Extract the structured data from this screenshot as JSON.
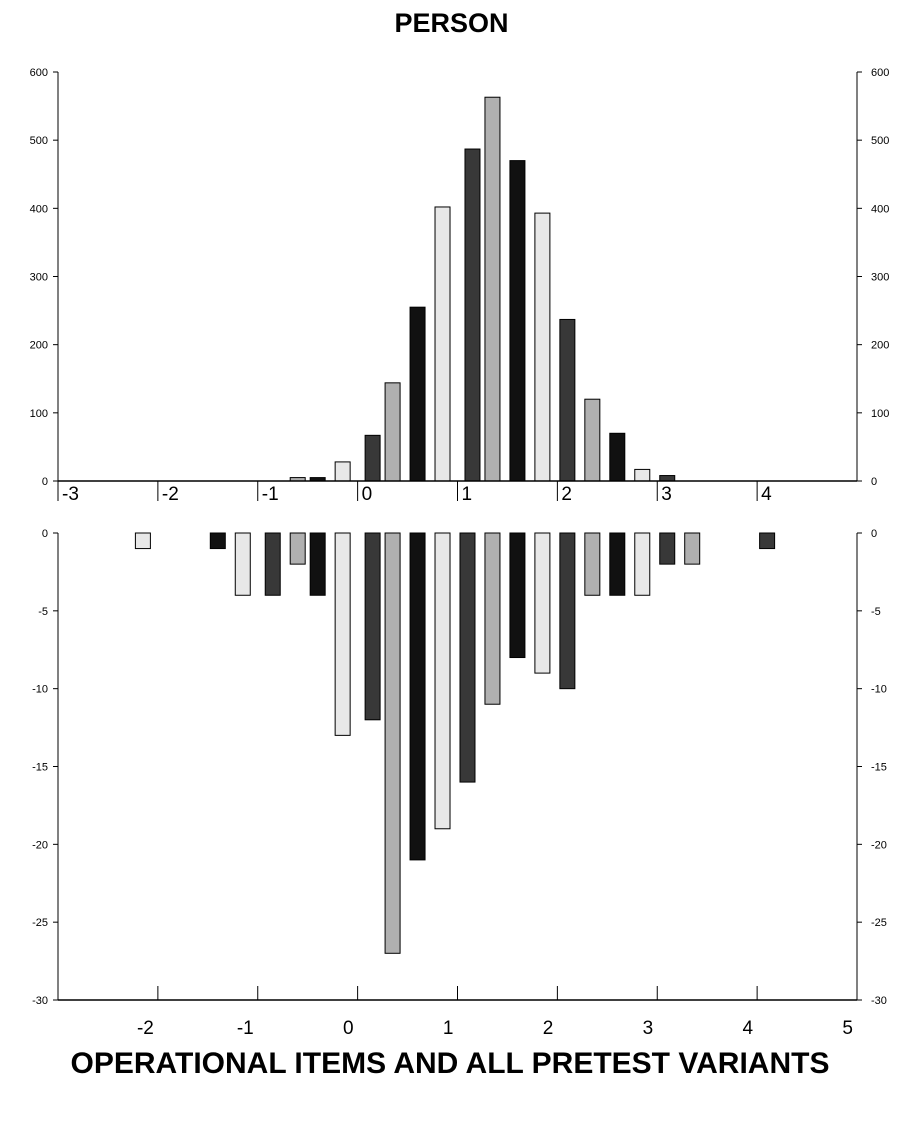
{
  "chart_data": [
    {
      "type": "bar",
      "title": "PERSON",
      "ylim": [
        0,
        600
      ],
      "xlim": [
        -3,
        5
      ],
      "yticks": [
        0,
        100,
        200,
        300,
        400,
        500,
        600
      ],
      "xticks": [
        -3,
        -2,
        -1,
        0,
        1,
        2,
        3,
        4
      ],
      "x": [
        -0.6,
        -0.4,
        -0.15,
        0.15,
        0.35,
        0.6,
        0.85,
        1.15,
        1.35,
        1.6,
        1.85,
        2.1,
        2.35,
        2.6,
        2.85,
        3.1
      ],
      "values": [
        5,
        5,
        28,
        67,
        144,
        255,
        402,
        487,
        563,
        470,
        393,
        237,
        120,
        70,
        17,
        8
      ],
      "colors": [
        "#b0b0b0",
        "#111111",
        "#e8e8e8",
        "#383838",
        "#b0b0b0",
        "#111111",
        "#e8e8e8",
        "#383838",
        "#b0b0b0",
        "#111111",
        "#e8e8e8",
        "#383838",
        "#b0b0b0",
        "#111111",
        "#e8e8e8",
        "#383838"
      ],
      "grid": false
    },
    {
      "type": "bar",
      "xlabel": "OPERATIONAL ITEMS AND ALL PRETEST VARIANTS",
      "ylim": [
        -30,
        0
      ],
      "xlim": [
        -3,
        5
      ],
      "yticks": [
        0,
        -5,
        -10,
        -15,
        -20,
        -25,
        -30
      ],
      "xticks": [
        -2,
        -1,
        0,
        1,
        2,
        3,
        4,
        5
      ],
      "x": [
        -2.15,
        -1.4,
        -1.15,
        -0.85,
        -0.6,
        -0.4,
        -0.15,
        0.15,
        0.35,
        0.6,
        0.85,
        1.1,
        1.35,
        1.6,
        1.85,
        2.1,
        2.35,
        2.6,
        2.85,
        3.1,
        3.35,
        4.1
      ],
      "values": [
        -1,
        -1,
        -4,
        -4,
        -2,
        -4,
        -13,
        -12,
        -27,
        -21,
        -19,
        -16,
        -11,
        -8,
        -9,
        -10,
        -4,
        -4,
        -4,
        -2,
        -2,
        -1
      ],
      "colors": [
        "#e8e8e8",
        "#111111",
        "#e8e8e8",
        "#383838",
        "#b0b0b0",
        "#111111",
        "#e8e8e8",
        "#383838",
        "#b0b0b0",
        "#111111",
        "#e8e8e8",
        "#383838",
        "#b0b0b0",
        "#111111",
        "#e8e8e8",
        "#383838",
        "#b0b0b0",
        "#111111",
        "#e8e8e8",
        "#383838",
        "#b0b0b0",
        "#383838"
      ],
      "grid": false
    }
  ]
}
